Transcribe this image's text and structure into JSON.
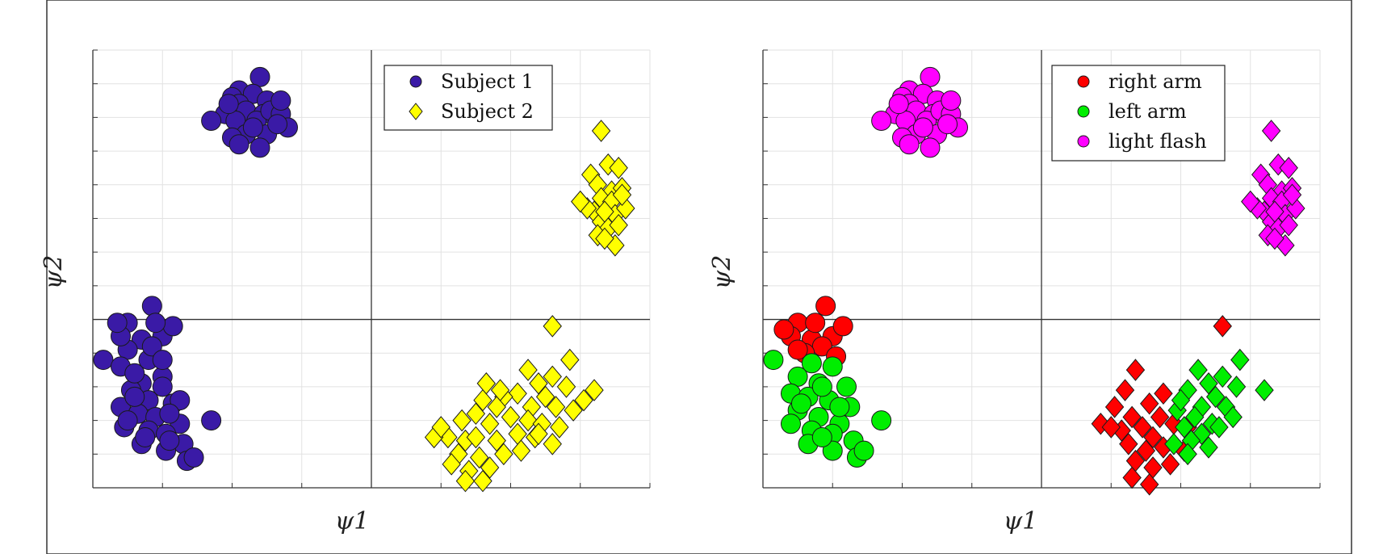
{
  "chart_data": [
    {
      "type": "scatter",
      "title": "",
      "xlabel": "ψ1",
      "ylabel": "ψ2",
      "xlim": [
        -4,
        4
      ],
      "ylim": [
        -2.5,
        4
      ],
      "grid": true,
      "tick_labels": false,
      "legend_position": "top-right",
      "series": [
        {
          "name": "Subject 1",
          "marker": "circle",
          "color": "#3a1aa6",
          "points": [
            [
              -1.6,
              3.6
            ],
            [
              -1.9,
              3.4
            ],
            [
              -2.0,
              3.3
            ],
            [
              -1.7,
              3.35
            ],
            [
              -1.5,
              3.25
            ],
            [
              -1.9,
              3.2
            ],
            [
              -1.8,
              3.1
            ],
            [
              -1.55,
              3.05
            ],
            [
              -2.1,
              3.05
            ],
            [
              -1.95,
              2.95
            ],
            [
              -1.65,
              2.95
            ],
            [
              -2.3,
              2.95
            ],
            [
              -1.45,
              3.1
            ],
            [
              -1.3,
              3.05
            ],
            [
              -1.3,
              3.25
            ],
            [
              -1.2,
              2.85
            ],
            [
              -1.5,
              2.75
            ],
            [
              -1.8,
              2.75
            ],
            [
              -2.0,
              2.7
            ],
            [
              -1.6,
              2.55
            ],
            [
              -1.9,
              2.6
            ],
            [
              -1.35,
              2.9
            ],
            [
              -2.05,
              3.2
            ],
            [
              -1.7,
              2.85
            ],
            [
              -3.15,
              0.2
            ],
            [
              -3.5,
              -0.05
            ],
            [
              -3.0,
              -0.25
            ],
            [
              -3.3,
              -0.3
            ],
            [
              -3.2,
              -0.6
            ],
            [
              -3.5,
              -0.45
            ],
            [
              -3.85,
              -0.6
            ],
            [
              -3.6,
              -0.7
            ],
            [
              -3.0,
              -0.85
            ],
            [
              -2.85,
              -0.1
            ],
            [
              -3.6,
              -0.25
            ],
            [
              -3.3,
              -0.95
            ],
            [
              -3.0,
              -1.0
            ],
            [
              -3.45,
              -1.05
            ],
            [
              -3.2,
              -1.2
            ],
            [
              -2.85,
              -1.25
            ],
            [
              -3.6,
              -1.3
            ],
            [
              -3.35,
              -1.4
            ],
            [
              -3.1,
              -1.45
            ],
            [
              -2.75,
              -1.55
            ],
            [
              -2.3,
              -1.5
            ],
            [
              -3.55,
              -1.6
            ],
            [
              -3.2,
              -1.65
            ],
            [
              -2.95,
              -1.7
            ],
            [
              -2.7,
              -1.85
            ],
            [
              -3.3,
              -1.85
            ],
            [
              -2.95,
              -1.95
            ],
            [
              -2.65,
              -2.1
            ],
            [
              -2.75,
              -1.2
            ],
            [
              -3.4,
              -1.15
            ],
            [
              -3.15,
              -0.4
            ],
            [
              -3.0,
              -0.6
            ],
            [
              -3.4,
              -0.8
            ],
            [
              -2.9,
              -1.4
            ],
            [
              -3.5,
              -1.5
            ],
            [
              -3.25,
              -1.75
            ],
            [
              -2.55,
              -2.05
            ],
            [
              -3.1,
              -0.05
            ],
            [
              -3.65,
              -0.05
            ],
            [
              -2.9,
              -1.8
            ]
          ]
        },
        {
          "name": "Subject 2",
          "marker": "diamond",
          "color": "#ffff00",
          "points": [
            [
              3.3,
              2.8
            ],
            [
              3.4,
              2.3
            ],
            [
              3.55,
              2.25
            ],
            [
              3.15,
              2.15
            ],
            [
              3.25,
              2.0
            ],
            [
              3.45,
              1.9
            ],
            [
              3.6,
              1.95
            ],
            [
              3.3,
              1.8
            ],
            [
              3.45,
              1.75
            ],
            [
              3.2,
              1.6
            ],
            [
              3.5,
              1.55
            ],
            [
              3.65,
              1.65
            ],
            [
              3.3,
              1.45
            ],
            [
              3.4,
              1.35
            ],
            [
              3.1,
              1.65
            ],
            [
              3.55,
              1.4
            ],
            [
              3.25,
              1.25
            ],
            [
              3.5,
              1.1
            ],
            [
              3.35,
              1.2
            ],
            [
              3.0,
              1.75
            ],
            [
              3.6,
              1.85
            ],
            [
              3.35,
              1.6
            ],
            [
              2.6,
              -0.1
            ],
            [
              2.85,
              -0.6
            ],
            [
              2.25,
              -0.75
            ],
            [
              2.6,
              -0.85
            ],
            [
              2.4,
              -0.95
            ],
            [
              2.8,
              -1.0
            ],
            [
              2.1,
              -1.1
            ],
            [
              2.5,
              -1.15
            ],
            [
              2.3,
              -1.3
            ],
            [
              2.65,
              -1.3
            ],
            [
              1.9,
              -1.15
            ],
            [
              1.6,
              -1.2
            ],
            [
              1.5,
              -1.4
            ],
            [
              1.8,
              -1.3
            ],
            [
              1.3,
              -1.5
            ],
            [
              1.7,
              -1.55
            ],
            [
              2.0,
              -1.45
            ],
            [
              2.25,
              -1.5
            ],
            [
              2.45,
              -1.55
            ],
            [
              1.35,
              -1.8
            ],
            [
              1.1,
              -1.75
            ],
            [
              0.9,
              -1.75
            ],
            [
              1.5,
              -1.75
            ],
            [
              1.8,
              -1.8
            ],
            [
              2.1,
              -1.7
            ],
            [
              2.35,
              -1.75
            ],
            [
              1.25,
              -2.0
            ],
            [
              1.55,
              -2.05
            ],
            [
              1.9,
              -2.0
            ],
            [
              2.15,
              -1.95
            ],
            [
              2.6,
              -1.85
            ],
            [
              1.4,
              -2.25
            ],
            [
              1.7,
              -2.2
            ],
            [
              1.35,
              -2.4
            ],
            [
              1.6,
              -2.4
            ],
            [
              1.15,
              -2.15
            ],
            [
              2.7,
              -1.6
            ],
            [
              3.2,
              -1.05
            ],
            [
              3.05,
              -1.2
            ],
            [
              2.9,
              -1.35
            ],
            [
              1.85,
              -1.05
            ],
            [
              1.65,
              -0.95
            ],
            [
              2.4,
              -1.7
            ],
            [
              1.0,
              -1.6
            ]
          ]
        }
      ]
    },
    {
      "type": "scatter",
      "title": "",
      "xlabel": "ψ1",
      "ylabel": "ψ2",
      "xlim": [
        -4,
        4
      ],
      "ylim": [
        -2.5,
        4
      ],
      "grid": true,
      "tick_labels": false,
      "legend_position": "top-right",
      "series": [
        {
          "name": "right arm",
          "color": "#ff0000",
          "points_circle": [
            [
              -3.1,
              0.2
            ],
            [
              -3.5,
              -0.05
            ],
            [
              -3.0,
              -0.25
            ],
            [
              -3.3,
              -0.3
            ],
            [
              -3.6,
              -0.25
            ],
            [
              -2.85,
              -0.1
            ],
            [
              -3.15,
              -0.4
            ],
            [
              -3.4,
              -0.5
            ],
            [
              -2.95,
              -0.55
            ],
            [
              -3.7,
              -0.15
            ],
            [
              -3.25,
              -0.05
            ],
            [
              -3.5,
              -0.45
            ]
          ],
          "points_diamond": [
            [
              2.6,
              -0.1
            ],
            [
              1.35,
              -0.75
            ],
            [
              1.2,
              -1.05
            ],
            [
              1.05,
              -1.3
            ],
            [
              0.85,
              -1.55
            ],
            [
              1.3,
              -1.45
            ],
            [
              1.55,
              -1.25
            ],
            [
              1.75,
              -1.1
            ],
            [
              1.45,
              -1.6
            ],
            [
              1.15,
              -1.65
            ],
            [
              1.6,
              -1.75
            ],
            [
              1.9,
              -1.55
            ],
            [
              1.25,
              -1.85
            ],
            [
              1.5,
              -1.95
            ],
            [
              1.75,
              -1.9
            ],
            [
              2.1,
              -1.6
            ],
            [
              1.35,
              -2.1
            ],
            [
              1.6,
              -2.2
            ],
            [
              1.85,
              -2.15
            ],
            [
              1.3,
              -2.35
            ],
            [
              1.55,
              -2.45
            ],
            [
              2.05,
              -1.95
            ],
            [
              1.0,
              -1.6
            ],
            [
              1.7,
              -1.45
            ]
          ]
        },
        {
          "name": "left arm",
          "color": "#00ee00",
          "points_circle": [
            [
              -3.85,
              -0.6
            ],
            [
              -3.3,
              -0.65
            ],
            [
              -3.0,
              -0.7
            ],
            [
              -3.5,
              -0.85
            ],
            [
              -3.2,
              -0.95
            ],
            [
              -2.8,
              -1.0
            ],
            [
              -3.6,
              -1.1
            ],
            [
              -3.35,
              -1.15
            ],
            [
              -3.05,
              -1.2
            ],
            [
              -2.75,
              -1.3
            ],
            [
              -3.5,
              -1.35
            ],
            [
              -3.2,
              -1.45
            ],
            [
              -2.9,
              -1.55
            ],
            [
              -2.3,
              -1.5
            ],
            [
              -3.6,
              -1.55
            ],
            [
              -3.3,
              -1.65
            ],
            [
              -3.0,
              -1.7
            ],
            [
              -2.7,
              -1.8
            ],
            [
              -3.35,
              -1.85
            ],
            [
              -3.0,
              -1.95
            ],
            [
              -2.65,
              -2.05
            ],
            [
              -2.55,
              -1.95
            ],
            [
              -3.15,
              -1.0
            ],
            [
              -2.9,
              -1.3
            ],
            [
              -3.45,
              -1.25
            ],
            [
              -3.15,
              -1.75
            ]
          ],
          "points_diamond": [
            [
              2.85,
              -0.6
            ],
            [
              2.25,
              -0.75
            ],
            [
              2.6,
              -0.85
            ],
            [
              2.4,
              -0.95
            ],
            [
              2.8,
              -1.0
            ],
            [
              2.1,
              -1.05
            ],
            [
              2.5,
              -1.15
            ],
            [
              2.3,
              -1.3
            ],
            [
              2.65,
              -1.3
            ],
            [
              2.2,
              -1.45
            ],
            [
              2.45,
              -1.55
            ],
            [
              1.95,
              -1.35
            ],
            [
              2.05,
              -1.6
            ],
            [
              2.3,
              -1.7
            ],
            [
              2.55,
              -1.6
            ],
            [
              2.15,
              -1.8
            ],
            [
              2.4,
              -1.9
            ],
            [
              1.9,
              -1.85
            ],
            [
              2.1,
              -2.0
            ],
            [
              3.2,
              -1.05
            ],
            [
              2.75,
              -1.45
            ],
            [
              2.0,
              -1.2
            ]
          ]
        },
        {
          "name": "light flash",
          "color": "#ff00ff",
          "points_circle": [
            [
              -1.6,
              3.6
            ],
            [
              -1.9,
              3.4
            ],
            [
              -2.0,
              3.3
            ],
            [
              -1.7,
              3.35
            ],
            [
              -1.5,
              3.25
            ],
            [
              -1.9,
              3.2
            ],
            [
              -1.8,
              3.1
            ],
            [
              -1.55,
              3.05
            ],
            [
              -2.1,
              3.05
            ],
            [
              -1.95,
              2.95
            ],
            [
              -1.65,
              2.95
            ],
            [
              -2.3,
              2.95
            ],
            [
              -1.45,
              3.1
            ],
            [
              -1.3,
              3.05
            ],
            [
              -1.3,
              3.25
            ],
            [
              -1.2,
              2.85
            ],
            [
              -1.5,
              2.75
            ],
            [
              -1.8,
              2.75
            ],
            [
              -2.0,
              2.7
            ],
            [
              -1.6,
              2.55
            ],
            [
              -1.9,
              2.6
            ],
            [
              -1.35,
              2.9
            ],
            [
              -2.05,
              3.2
            ],
            [
              -1.7,
              2.85
            ]
          ],
          "points_diamond": [
            [
              3.3,
              2.8
            ],
            [
              3.4,
              2.3
            ],
            [
              3.55,
              2.25
            ],
            [
              3.15,
              2.15
            ],
            [
              3.25,
              2.0
            ],
            [
              3.45,
              1.9
            ],
            [
              3.6,
              1.95
            ],
            [
              3.3,
              1.8
            ],
            [
              3.45,
              1.75
            ],
            [
              3.2,
              1.6
            ],
            [
              3.5,
              1.55
            ],
            [
              3.65,
              1.65
            ],
            [
              3.3,
              1.45
            ],
            [
              3.4,
              1.35
            ],
            [
              3.1,
              1.65
            ],
            [
              3.55,
              1.4
            ],
            [
              3.25,
              1.25
            ],
            [
              3.5,
              1.1
            ],
            [
              3.35,
              1.2
            ],
            [
              3.0,
              1.75
            ],
            [
              3.6,
              1.85
            ],
            [
              3.35,
              1.6
            ]
          ]
        }
      ]
    }
  ]
}
